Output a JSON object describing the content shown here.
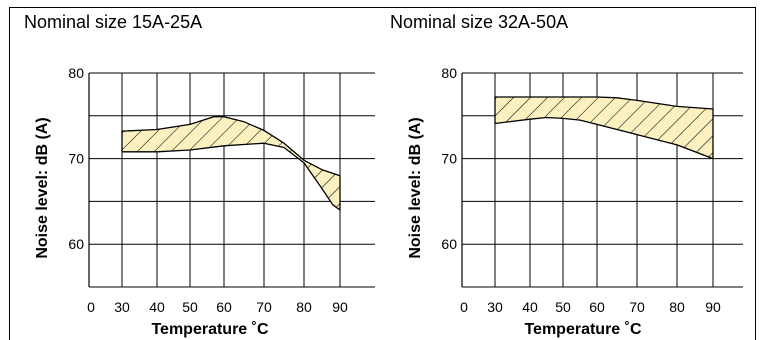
{
  "chart_data": [
    {
      "type": "area",
      "title": "Nominal size 15A-25A",
      "xlabel": "Temperature ˚C",
      "ylabel": "Noise level: dB (A)",
      "xlim": [
        0,
        100
      ],
      "ylim": [
        55,
        80
      ],
      "x_ticks": [
        "0",
        "30",
        "40",
        "50",
        "60",
        "70",
        "80",
        "90"
      ],
      "y_ticks": [
        "80",
        "70",
        "60"
      ],
      "grid": true,
      "fill_color": "#fbf1c0",
      "hatch_color": "#000000",
      "series": [
        {
          "upper": {
            "x": [
              30,
              40,
              50,
              57,
              60,
              65,
              70,
              75,
              80,
              85,
              90
            ],
            "y": [
              73.2,
              73.4,
              74.0,
              74.9,
              74.9,
              74.3,
              73.3,
              71.8,
              69.8,
              68.7,
              68.0
            ]
          },
          "lower": {
            "x": [
              30,
              40,
              50,
              60,
              70,
              75,
              80,
              85,
              88,
              90
            ],
            "y": [
              70.8,
              70.8,
              71.0,
              71.5,
              71.8,
              71.3,
              69.5,
              66.5,
              64.6,
              64.0
            ]
          }
        }
      ]
    },
    {
      "type": "area",
      "title": "Nominal size 32A-50A",
      "xlabel": "Temperature ˚C",
      "ylabel": "Noise level: dB (A)",
      "xlim": [
        0,
        100
      ],
      "ylim": [
        55,
        80
      ],
      "x_ticks": [
        "0",
        "30",
        "40",
        "50",
        "60",
        "70",
        "80",
        "90"
      ],
      "y_ticks": [
        "80",
        "70",
        "60"
      ],
      "grid": true,
      "fill_color": "#fbf1c0",
      "hatch_color": "#000000",
      "series": [
        {
          "upper": {
            "x": [
              30,
              40,
              50,
              60,
              65,
              70,
              80,
              90
            ],
            "y": [
              77.2,
              77.2,
              77.2,
              77.2,
              77.1,
              76.8,
              76.1,
              75.8
            ]
          },
          "lower": {
            "x": [
              30,
              40,
              45,
              50,
              55,
              60,
              70,
              80,
              90
            ],
            "y": [
              74.1,
              74.6,
              74.8,
              74.7,
              74.5,
              74.0,
              72.8,
              71.6,
              70.0
            ]
          }
        }
      ]
    }
  ]
}
